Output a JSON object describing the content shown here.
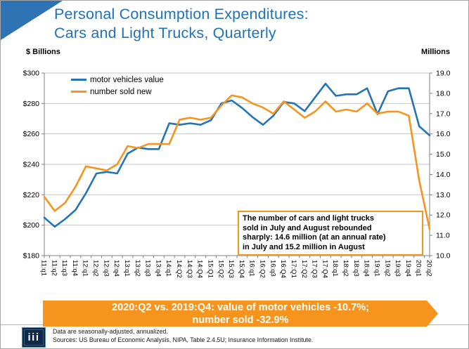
{
  "slide": {
    "title_line1": "Personal Consumption Expenditures:",
    "title_line2": "Cars and Light Trucks, Quarterly",
    "left_axis_title": "$ Billions",
    "right_axis_title": "Millions"
  },
  "chart_data": {
    "type": "line",
    "categories": [
      "11:q1",
      "11:q2",
      "11:q3",
      "11:q4",
      "12:q1",
      "12:q2",
      "12:q3",
      "12:q4",
      "13:q1",
      "13:q2",
      "13:q3",
      "13:q4",
      "14:q1",
      "14:Q2",
      "14:Q3",
      "14:Q4",
      "15:Q1",
      "15:Q2",
      "15:Q3",
      "15:Q4",
      "16:q1",
      "16:Q2",
      "16:q3",
      "16:Q4",
      "17:Q1",
      "17:Q2",
      "17:Q3",
      "17:Q4",
      "18:q1",
      "18:q2",
      "18:q3",
      "18:q4",
      "19:q1",
      "19:q2",
      "19:q3",
      "19:q4",
      "20:q1",
      "20:q2"
    ],
    "series": [
      {
        "name": "motor vehicles value",
        "axis": "left",
        "color": "#2274b5",
        "values": [
          205,
          199,
          204,
          210,
          221,
          234,
          235,
          234,
          247,
          251,
          250,
          250,
          267,
          266,
          267,
          266,
          269,
          280,
          282,
          277,
          271,
          266,
          272,
          281,
          280,
          275,
          284,
          293,
          285,
          286,
          286,
          290,
          273,
          288,
          290,
          290,
          265,
          259
        ]
      },
      {
        "name": "number sold new",
        "axis": "right",
        "color": "#f7941e",
        "values": [
          12.9,
          12.2,
          12.6,
          13.4,
          14.4,
          14.3,
          14.2,
          14.5,
          15.4,
          15.3,
          15.5,
          15.5,
          15.5,
          16.7,
          16.8,
          16.7,
          16.8,
          17.4,
          17.9,
          17.8,
          17.5,
          17.3,
          17.0,
          17.6,
          17.2,
          16.8,
          17.1,
          17.6,
          17.1,
          17.2,
          17.1,
          17.5,
          17.0,
          17.1,
          17.1,
          16.9,
          13.7,
          11.3
        ]
      }
    ],
    "left_axis": {
      "title": "$ Billions",
      "min": 180,
      "max": 300,
      "step": 20,
      "tick_labels": [
        "$300",
        "$280",
        "$260",
        "$240",
        "$220",
        "$200",
        "$180"
      ]
    },
    "right_axis": {
      "title": "Millions",
      "min": 10.0,
      "max": 19.0,
      "step": 1.0,
      "tick_labels": [
        "19.0",
        "18.0",
        "17.0",
        "16.0",
        "15.0",
        "14.0",
        "13.0",
        "12.0",
        "11.0",
        "10.0"
      ]
    },
    "grid": true,
    "legend_position": "top-left-inside"
  },
  "annotation": {
    "lines": [
      "The number of cars and light trucks",
      "sold in July and August rebounded",
      "sharply: 14.6 million (at an annual rate)",
      "in July and 15.2 million in August"
    ]
  },
  "banner": {
    "line1": "2020:Q2 vs. 2019:Q4: value of motor vehicles -10.7%;",
    "line2": "number sold -32.9%"
  },
  "footer": {
    "logo_text": "iii",
    "line1": "Data are seasonally-adjusted, annualized.",
    "line2": "Sources: US Bureau of Economic Analysis, NIPA, Table 2.4.5U; Insurance Information Institute."
  },
  "colors": {
    "title_blue": "#1f72b8",
    "accent_triangle_blue": "#2e74b5",
    "line_blue": "#2274b5",
    "line_orange": "#f7941e",
    "banner_orange": "#f7941e",
    "annotation_border_orange": "#f7941e",
    "logo_navy": "#0e2a47",
    "gridline_gray": "#c6c6c6",
    "axis_gray": "#808080"
  }
}
